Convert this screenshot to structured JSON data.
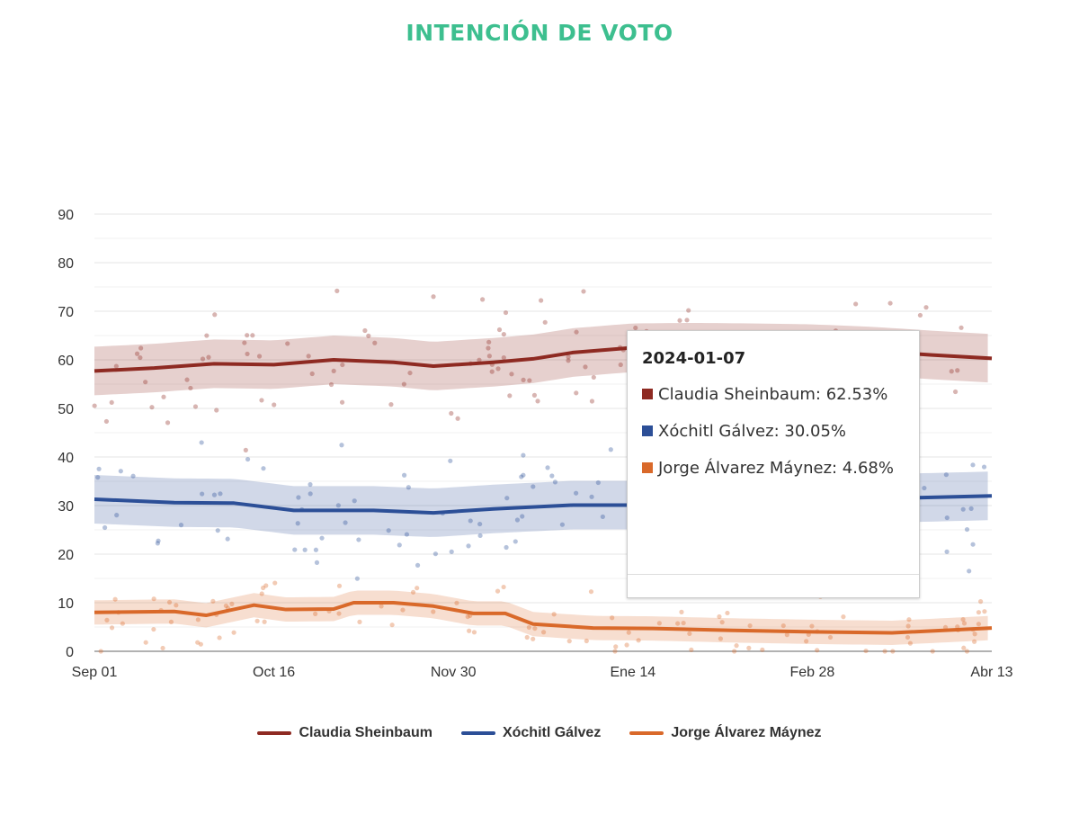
{
  "title": "INTENCIÓN DE VOTO",
  "chart_data": {
    "type": "line",
    "title": "INTENCIÓN DE VOTO",
    "xlabel": "",
    "ylabel": "",
    "x_unit": "days since 2023-09-01",
    "xlim": [
      0,
      225
    ],
    "ylim": [
      0,
      90
    ],
    "yticks": [
      "0",
      "10",
      "20",
      "30",
      "40",
      "50",
      "60",
      "70",
      "80",
      "90"
    ],
    "xticks": [
      {
        "day": 0,
        "label": "Sep 01"
      },
      {
        "day": 45,
        "label": "Oct 16"
      },
      {
        "day": 90,
        "label": "Nov 30"
      },
      {
        "day": 135,
        "label": "Ene 14"
      },
      {
        "day": 180,
        "label": "Feb 28"
      },
      {
        "day": 225,
        "label": "Abr 13"
      }
    ],
    "grid": true,
    "legend_position": "bottom",
    "series": [
      {
        "name": "Claudia Sheinbaum",
        "color": "#8e2a22",
        "band": 5,
        "x": [
          0,
          15,
          30,
          45,
          60,
          75,
          85,
          100,
          110,
          120,
          135,
          150,
          165,
          180,
          195,
          210,
          225
        ],
        "y": [
          57.7,
          58.3,
          59.2,
          59.0,
          60.0,
          59.5,
          58.7,
          59.5,
          60.2,
          61.5,
          62.5,
          62.6,
          62.5,
          62.3,
          61.8,
          61.0,
          60.3
        ]
      },
      {
        "name": "Xóchitl Gálvez",
        "color": "#2c4f97",
        "band": 5,
        "x": [
          0,
          20,
          35,
          50,
          70,
          85,
          100,
          120,
          135,
          150,
          165,
          180,
          200,
          225
        ],
        "y": [
          31.3,
          30.6,
          30.5,
          29.0,
          29.0,
          28.5,
          29.3,
          30.1,
          30.1,
          30.2,
          30.5,
          31.0,
          31.5,
          32.0
        ]
      },
      {
        "name": "Jorge Álvarez Máynez",
        "color": "#d9692a",
        "band": 2.5,
        "x": [
          0,
          20,
          28,
          40,
          48,
          60,
          65,
          75,
          85,
          95,
          103,
          110,
          125,
          140,
          160,
          180,
          200,
          225
        ],
        "y": [
          8.0,
          8.2,
          7.4,
          9.5,
          8.6,
          8.7,
          10.0,
          10.0,
          9.3,
          7.8,
          7.8,
          5.6,
          4.8,
          4.7,
          4.3,
          4.0,
          3.8,
          4.8
        ]
      }
    ]
  },
  "tooltip": {
    "date": "2024-01-07",
    "items": [
      {
        "label": "Claudia Sheinbaum: 62.53%",
        "color": "#8e2a22"
      },
      {
        "label": "Xóchitl Gálvez: 30.05%",
        "color": "#2c4f97"
      },
      {
        "label": "Jorge Álvarez Máynez: 4.68%",
        "color": "#d9692a"
      }
    ]
  },
  "legend": [
    {
      "label": "Claudia Sheinbaum",
      "color": "#8e2a22"
    },
    {
      "label": "Xóchitl Gálvez",
      "color": "#2c4f97"
    },
    {
      "label": "Jorge Álvarez Máynez",
      "color": "#d9692a"
    }
  ]
}
